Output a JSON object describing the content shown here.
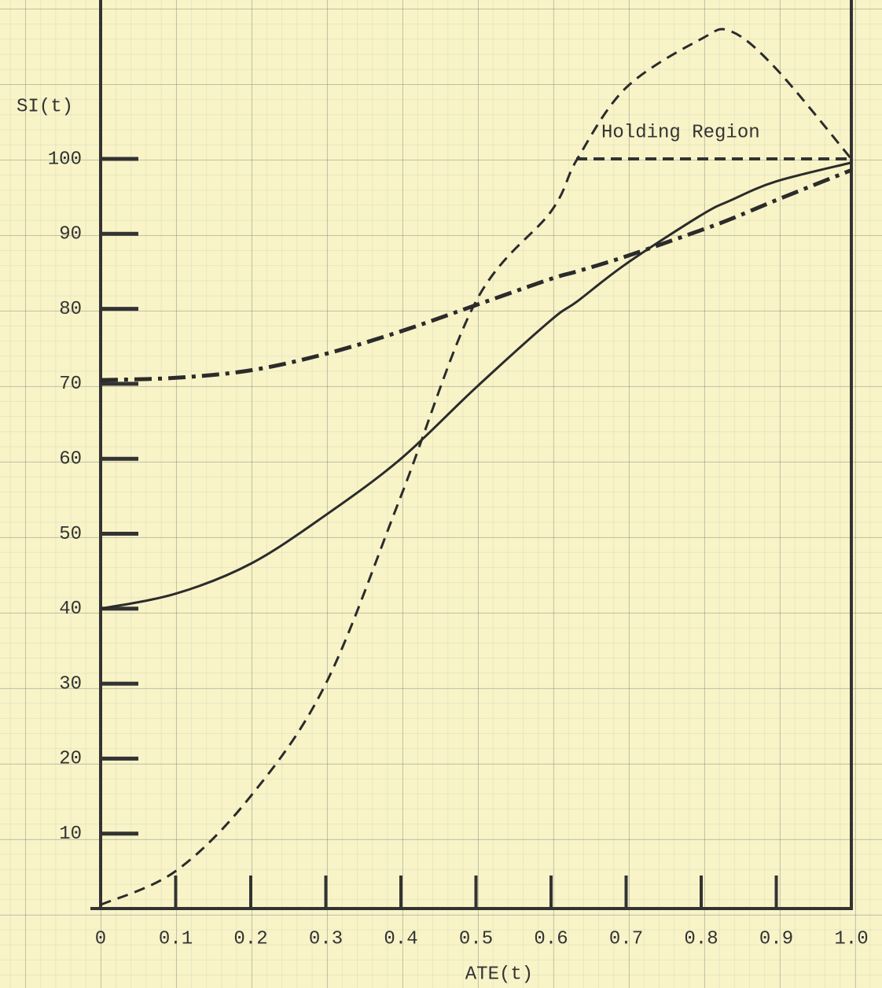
{
  "chart_data": {
    "type": "line",
    "x_label": "ATE(t)",
    "y_label": "SI(t)",
    "annotation": "Holding Region",
    "x": [
      0,
      0.1,
      0.2,
      0.3,
      0.4,
      0.5,
      0.6,
      0.635,
      0.7,
      0.8,
      0.84,
      0.9,
      1.0
    ],
    "series": [
      {
        "color": "#2b2b2b",
        "style": "solid",
        "values": [
          40,
          42,
          46,
          52.5,
          60,
          69.5,
          78.5,
          81,
          86,
          92.5,
          94.5,
          97,
          99.5
        ]
      },
      {
        "color": "#2b2b2b",
        "style": "dashdot",
        "values": [
          70.5,
          70.8,
          71.8,
          74,
          77,
          80.5,
          84,
          85,
          87,
          90.5,
          92,
          94.5,
          98.5
        ]
      },
      {
        "color": "#2b2b2b",
        "style": "dashed",
        "values": [
          0.5,
          5,
          15,
          30,
          55,
          81,
          93,
          100,
          109.5,
          116,
          117,
          112,
          100
        ]
      }
    ],
    "xlim": [
      0,
      1
    ],
    "ylim": [
      0,
      120
    ],
    "xticks": [
      0,
      0.1,
      0.2,
      0.3,
      0.4,
      0.5,
      0.6,
      0.7,
      0.8,
      0.9,
      {
        "value": 1,
        "label": "1.0"
      }
    ],
    "yticks": [
      10,
      20,
      30,
      40,
      50,
      60,
      70,
      80,
      90,
      100
    ],
    "grid": true
  }
}
